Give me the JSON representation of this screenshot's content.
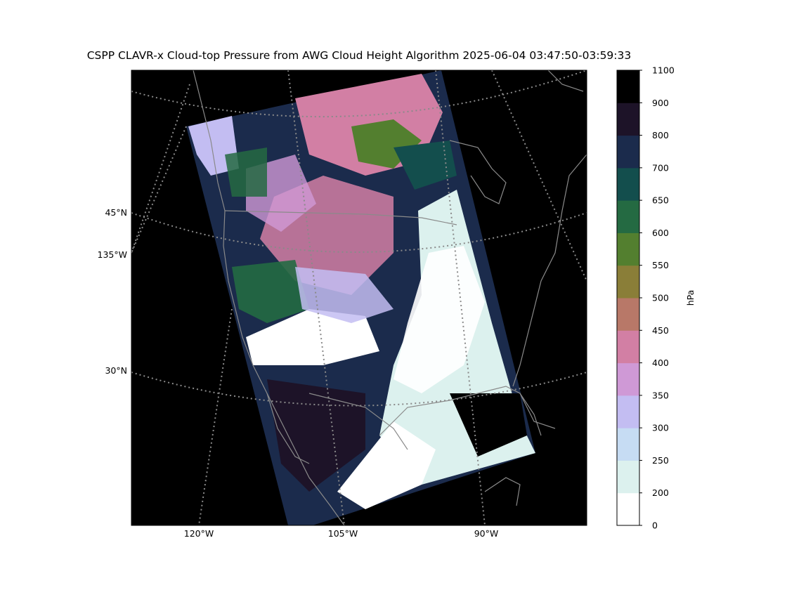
{
  "title": "CSPP CLAVR-x Cloud-top Pressure from AWG Cloud Height Algorithm 2025-06-04 03:47:50-03:59:33",
  "map": {
    "lat_labels": [
      "45°N",
      "135°W",
      "30°N"
    ],
    "lon_labels": [
      "120°W",
      "105°W",
      "90°W"
    ]
  },
  "colorbar": {
    "unit_label": "hPa",
    "ticks": [
      "0",
      "200",
      "250",
      "300",
      "350",
      "400",
      "450",
      "500",
      "550",
      "600",
      "650",
      "700",
      "800",
      "900",
      "1100"
    ],
    "colors": [
      "#ffffff",
      "#dcf1ee",
      "#c6dcf3",
      "#c3bdf2",
      "#cf99d6",
      "#d27fa4",
      "#b87868",
      "#8a7e38",
      "#537f2f",
      "#246a42",
      "#134e4d",
      "#1b2b4c",
      "#1d1328",
      "#000000"
    ]
  },
  "colors": {
    "background": "#000000",
    "coastline": "#8a8a8a",
    "gridline": "#8a8a8a"
  }
}
